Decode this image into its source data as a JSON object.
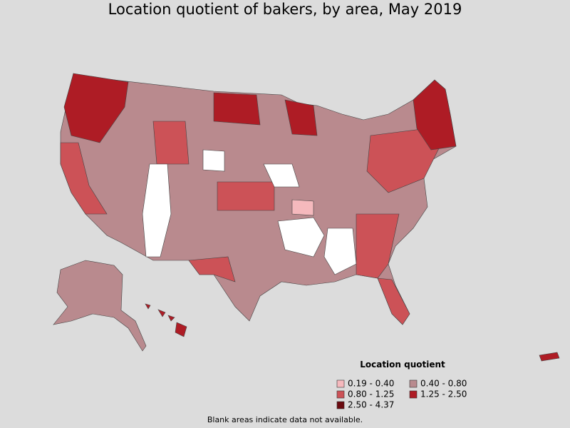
{
  "title": "Location quotient of bakers, by area, May 2019",
  "legend": {
    "title": "Location quotient",
    "items": [
      {
        "label": "0.19 - 0.40",
        "color": "#f5b9bd"
      },
      {
        "label": "0.40 - 0.80",
        "color": "#b98a8e"
      },
      {
        "label": "0.80 - 1.25",
        "color": "#cc5257"
      },
      {
        "label": "1.25 - 2.50",
        "color": "#ae1c25"
      },
      {
        "label": "2.50 - 4.37",
        "color": "#6b0a10"
      }
    ]
  },
  "footnote": "Blank areas indicate data not available."
}
